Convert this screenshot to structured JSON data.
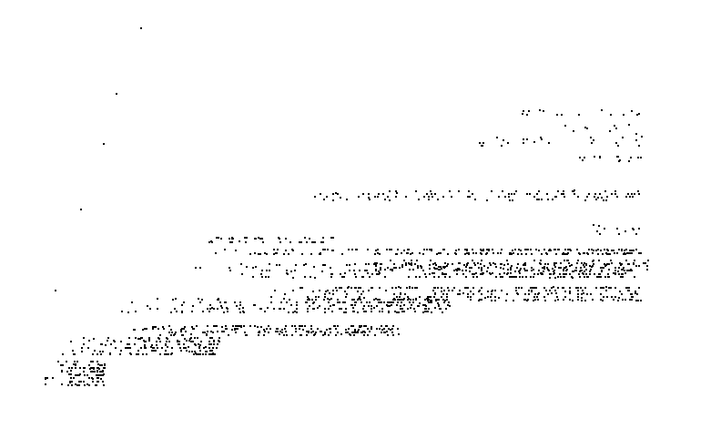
{
  "chart_data": {
    "type": "scatter",
    "title": "",
    "xlabel": "",
    "ylabel": "",
    "xlim": [
      0,
      100
    ],
    "ylim": [
      0,
      100
    ],
    "grid": false,
    "axes_visible": false,
    "marker_color": "#000000",
    "series": [
      {
        "clusters": [
          {
            "x": [
              0.2,
              10
            ],
            "y": [
              7,
              14
            ],
            "n": 110,
            "density": "dense"
          },
          {
            "x": [
              3,
              28
            ],
            "y": [
              15,
              20
            ],
            "n": 170,
            "density": "dense"
          },
          {
            "x": [
              14,
              56
            ],
            "y": [
              20,
              23
            ],
            "n": 200,
            "density": "medium"
          },
          {
            "x": [
              11,
              64
            ],
            "y": [
              26,
              30
            ],
            "n": 240,
            "density": "dense"
          },
          {
            "x": [
              35,
              94
            ],
            "y": [
              29,
              33
            ],
            "n": 260,
            "density": "medium"
          },
          {
            "x": [
              22,
              93
            ],
            "y": [
              35,
              39
            ],
            "n": 300,
            "density": "dense"
          },
          {
            "x": [
              52,
              95
            ],
            "y": [
              37,
              40
            ],
            "n": 120,
            "density": "sparse"
          },
          {
            "x": [
              26,
              94
            ],
            "y": [
              41,
              43
            ],
            "n": 190,
            "density": "dense"
          },
          {
            "x": [
              26,
              46
            ],
            "y": [
              44,
              46
            ],
            "n": 40,
            "density": "sparse"
          },
          {
            "x": [
              86,
              94
            ],
            "y": [
              46,
              49
            ],
            "n": 12,
            "density": "sparse"
          },
          {
            "x": [
              42,
              94
            ],
            "y": [
              55,
              58
            ],
            "n": 110,
            "density": "medium"
          },
          {
            "x": [
              84,
              94
            ],
            "y": [
              65,
              67
            ],
            "n": 14,
            "density": "sparse"
          },
          {
            "x": [
              68,
              94
            ],
            "y": [
              69,
              72
            ],
            "n": 24,
            "density": "sparse"
          },
          {
            "x": [
              82,
              94
            ],
            "y": [
              72,
              75
            ],
            "n": 10,
            "density": "sparse"
          },
          {
            "x": [
              74,
              94
            ],
            "y": [
              77,
              79
            ],
            "n": 16,
            "density": "sparse"
          }
        ],
        "singletons": [
          {
            "x": 15.6,
            "y": 99.5
          },
          {
            "x": 11.8,
            "y": 82.5
          },
          {
            "x": 9.9,
            "y": 69.5
          },
          {
            "x": 6.2,
            "y": 52.5
          },
          {
            "x": 2.3,
            "y": 31.5
          }
        ]
      }
    ]
  }
}
